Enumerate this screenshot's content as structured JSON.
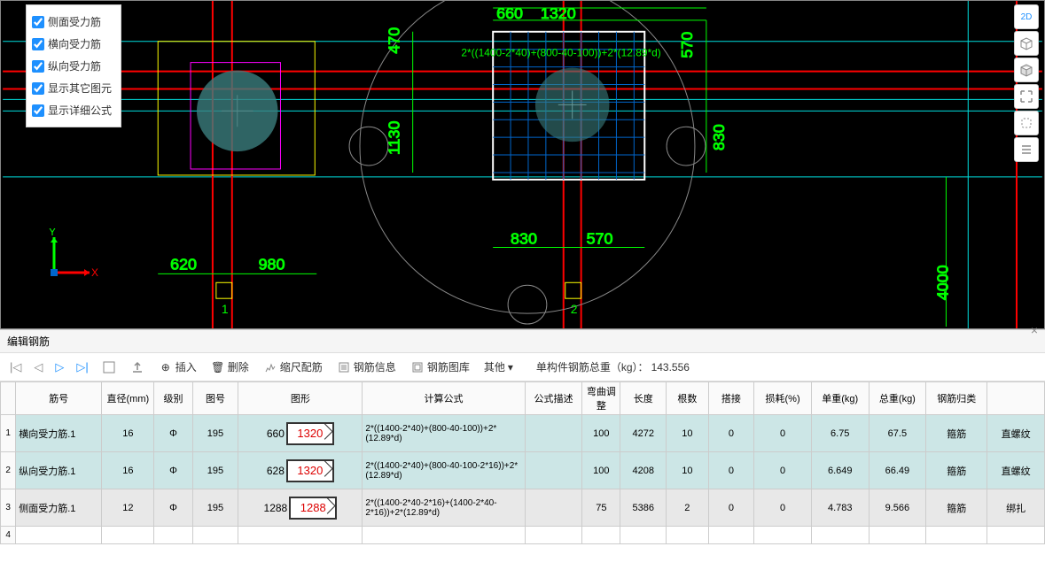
{
  "options": {
    "items": [
      {
        "label": "侧面受力筋",
        "checked": true
      },
      {
        "label": "横向受力筋",
        "checked": true
      },
      {
        "label": "纵向受力筋",
        "checked": true
      },
      {
        "label": "显示其它图元",
        "checked": true
      },
      {
        "label": "显示详细公式",
        "checked": true
      }
    ]
  },
  "right_tools": {
    "items": [
      {
        "label": "2D",
        "color": "#1e90ff"
      },
      {
        "label": "□"
      },
      {
        "label": "◫"
      },
      {
        "label": "⛶"
      },
      {
        "label": "◈"
      },
      {
        "label": "≡"
      }
    ]
  },
  "cad": {
    "dims": {
      "d470": "470",
      "d1130": "1130",
      "d570_top": "570",
      "d660": "660",
      "d1320": "1320",
      "d830": "830",
      "d830_b": "830",
      "d570_b": "570",
      "d620": "620",
      "d980": "980",
      "d4000": "4000"
    },
    "formula": "2*((1400-2*40)+(800-40-100))+2*(12.89*d)",
    "axes": {
      "x": "X",
      "y": "Y"
    },
    "marks": {
      "m1": "1",
      "m2": "2"
    }
  },
  "panel": {
    "title": "编辑钢筋"
  },
  "toolbar": {
    "insert": "插入",
    "delete": "删除",
    "scale": "缩尺配筋",
    "info": "钢筋信息",
    "lib": "钢筋图库",
    "other": "其他",
    "weight_label": "单构件钢筋总重（kg）：",
    "weight_value": "143.556"
  },
  "table": {
    "headers": [
      "筋号",
      "直径(mm)",
      "级别",
      "图号",
      "图形",
      "计算公式",
      "公式描述",
      "弯曲调整",
      "长度",
      "根数",
      "搭接",
      "损耗(%)",
      "单重(kg)",
      "总重(kg)",
      "钢筋归类",
      ""
    ],
    "rows": [
      {
        "idx": "1",
        "name": "横向受力筋.1",
        "dia": "16",
        "lvl": "Φ",
        "code": "195",
        "shape_l": "660",
        "shape_r": "1320",
        "formula": "2*((1400-2*40)+(800-40-100))+2*(12.89*d)",
        "desc": "",
        "bend": "100",
        "len": "4272",
        "cnt": "10",
        "lap": "0",
        "loss": "0",
        "uw": "6.75",
        "tw": "67.5",
        "cat": "箍筋",
        "type": "直螺纹"
      },
      {
        "idx": "2",
        "name": "纵向受力筋.1",
        "dia": "16",
        "lvl": "Φ",
        "code": "195",
        "shape_l": "628",
        "shape_r": "1320",
        "formula": "2*((1400-2*40)+(800-40-100-2*16))+2*(12.89*d)",
        "desc": "",
        "bend": "100",
        "len": "4208",
        "cnt": "10",
        "lap": "0",
        "loss": "0",
        "uw": "6.649",
        "tw": "66.49",
        "cat": "箍筋",
        "type": "直螺纹"
      },
      {
        "idx": "3",
        "name": "侧面受力筋.1",
        "dia": "12",
        "lvl": "Φ",
        "code": "195",
        "shape_l": "1288",
        "shape_r": "1288",
        "formula": "2*((1400-2*40-2*16)+(1400-2*40-2*16))+2*(12.89*d)",
        "desc": "",
        "bend": "75",
        "len": "5386",
        "cnt": "2",
        "lap": "0",
        "loss": "0",
        "uw": "4.783",
        "tw": "9.566",
        "cat": "箍筋",
        "type": "绑扎"
      }
    ],
    "empty_idx": "4"
  }
}
